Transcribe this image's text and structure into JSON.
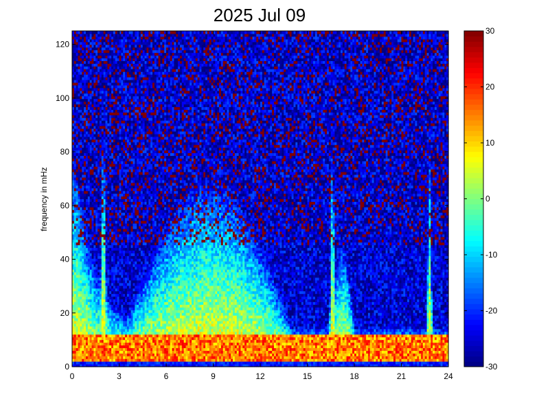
{
  "chart_data": {
    "type": "heatmap",
    "title": "2025 Jul 09",
    "xlabel": "",
    "ylabel": "frequency in mHz",
    "xlim": [
      0,
      24
    ],
    "ylim": [
      0,
      125
    ],
    "x_ticks": [
      0,
      3,
      6,
      9,
      12,
      15,
      18,
      21,
      24
    ],
    "y_ticks": [
      0,
      20,
      40,
      60,
      80,
      100,
      120
    ],
    "colorbar": {
      "colormap": "jet",
      "range": [
        -30,
        30
      ],
      "ticks": [
        -30,
        -20,
        -10,
        0,
        10,
        20,
        30
      ]
    },
    "grid": false,
    "description_of_field": {
      "low_frequency_band_mHz": [
        0,
        12
      ],
      "low_frequency_band_level": 20,
      "elevated_activity_hours": [
        3.5,
        14
      ],
      "elevated_activity_max_freq_mHz": 55,
      "secondary_activity_hours": [
        16.5,
        18
      ],
      "background_level": -25,
      "vertical_streak_hours": [
        2.0,
        16.6,
        22.8
      ]
    }
  }
}
